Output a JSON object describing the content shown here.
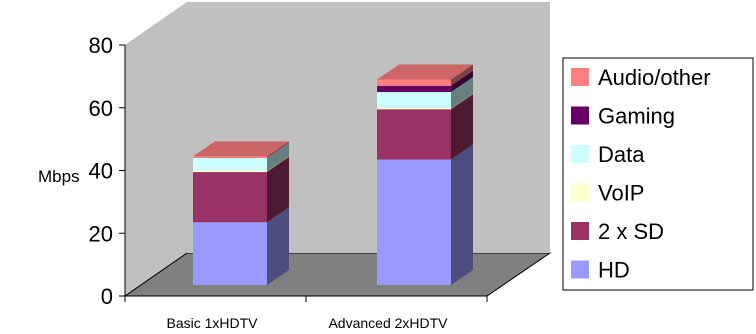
{
  "chart_data": {
    "type": "bar",
    "stacked": true,
    "three_d": true,
    "title": "",
    "ylabel": "Mbps",
    "xlabel": "",
    "ylim": [
      0,
      80
    ],
    "yticks": [
      "0",
      "20",
      "40",
      "60",
      "80"
    ],
    "grid": false,
    "legend_position": "right",
    "categories": [
      "Basic 1xHDTV",
      "Advanced 2xHDTV"
    ],
    "series": [
      {
        "name": "HD",
        "values": [
          20,
          40
        ],
        "color": "#9999FF"
      },
      {
        "name": "2 x SD",
        "values": [
          16,
          16
        ],
        "color": "#993366"
      },
      {
        "name": "VoIP",
        "values": [
          0.5,
          0.5
        ],
        "color": "#FFFFCC"
      },
      {
        "name": "Data",
        "values": [
          4,
          5
        ],
        "color": "#CCFFFF"
      },
      {
        "name": "Gaming",
        "values": [
          0,
          2
        ],
        "color": "#660066"
      },
      {
        "name": "Audio/other",
        "values": [
          0.5,
          2
        ],
        "color": "#FF8080"
      }
    ]
  }
}
